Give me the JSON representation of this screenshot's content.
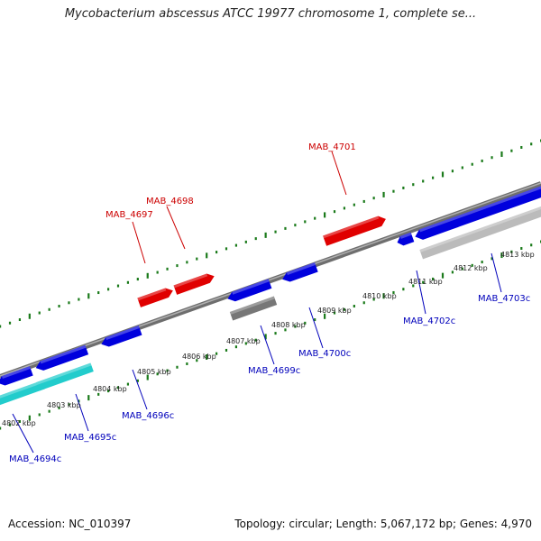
{
  "title": "Mycobacterium abscessus ATCC 19977 chromosome 1, complete se...",
  "footer": {
    "accession": "Accession: NC_010397",
    "summary": "Topology: circular; Length: 5,067,172 bp; Genes: 4,970"
  },
  "colors": {
    "backbone": "#8c8c8c",
    "tick_dot": "#1a7a1a",
    "forward_gene": "#e00000",
    "reverse_gene": "#0000dd",
    "forward_label": "#cc0000",
    "reverse_label": "#0000bb",
    "rna_gene": "#22cccc",
    "pseudo_gene": "#777777",
    "other_gene": "#bbbbbb"
  },
  "position_labels": [
    "4802 kbp",
    "4803 kbp",
    "4804 kbp",
    "4805 kbp",
    "4806 kbp",
    "4807 kbp",
    "4808 kbp",
    "4809 kbp",
    "4810 kbp",
    "4811 kbp",
    "4812 kbp",
    "4813 kbp"
  ],
  "forward_genes": [
    {
      "label": "MAB_4697"
    },
    {
      "label": "MAB_4698"
    },
    {
      "label": "MAB_4701"
    }
  ],
  "reverse_genes": [
    {
      "label": "MAB_4694c"
    },
    {
      "label": "MAB_4695c"
    },
    {
      "label": "MAB_4696c"
    },
    {
      "label": "MAB_4699c"
    },
    {
      "label": "MAB_4700c"
    },
    {
      "label": "MAB_4702c"
    },
    {
      "label": "MAB_4703c"
    }
  ]
}
